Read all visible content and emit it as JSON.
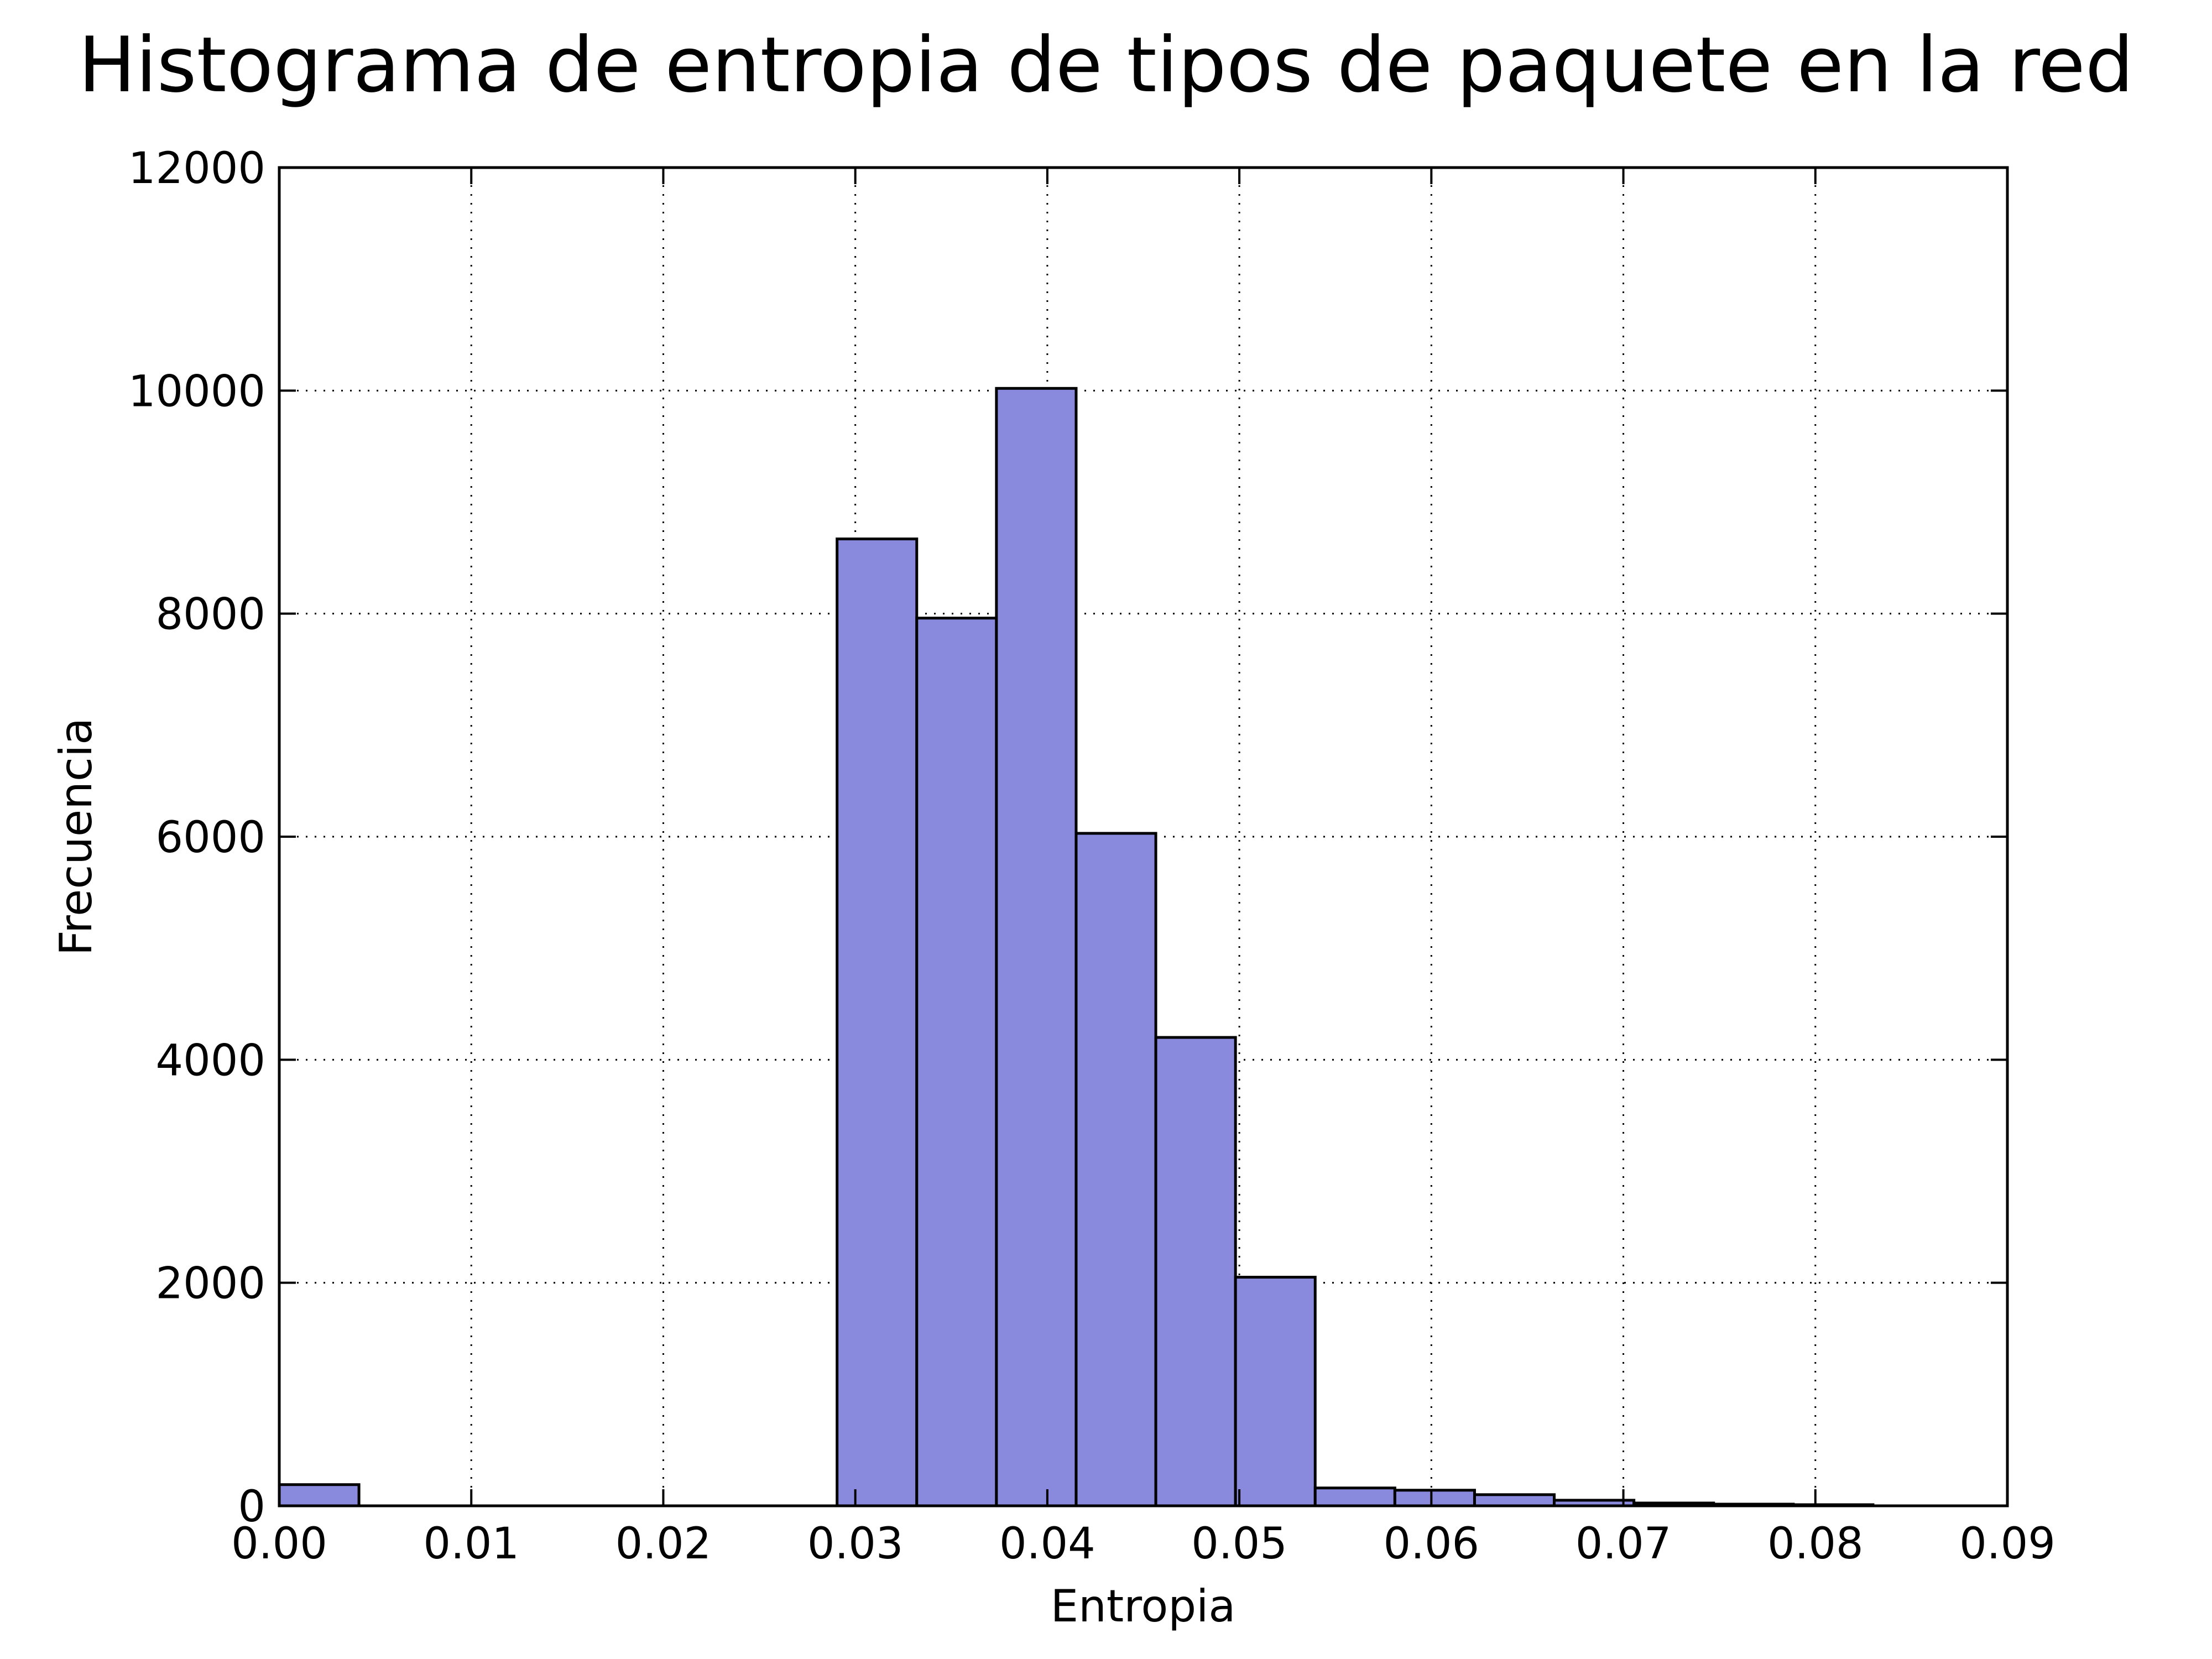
{
  "chart_data": {
    "type": "bar",
    "title": "Histograma de entropia de tipos de paquete en la red",
    "xlabel": "Entropia",
    "ylabel": "Frecuencia",
    "xlim": [
      0.0,
      0.09
    ],
    "ylim": [
      0,
      12000
    ],
    "grid": true,
    "x_tick_labels": [
      "0.00",
      "0.01",
      "0.02",
      "0.03",
      "0.04",
      "0.05",
      "0.06",
      "0.07",
      "0.08",
      "0.09"
    ],
    "y_tick_labels": [
      "0",
      "2000",
      "4000",
      "6000",
      "8000",
      "10000",
      "12000"
    ],
    "bin_edges": [
      0.0,
      0.00415,
      0.0083,
      0.01245,
      0.0166,
      0.02075,
      0.0249,
      0.02905,
      0.0332,
      0.03735,
      0.0415,
      0.04565,
      0.0498,
      0.05395,
      0.0581,
      0.06225,
      0.0664,
      0.07055,
      0.0747,
      0.07885,
      0.083
    ],
    "values": [
      190,
      0,
      0,
      0,
      0,
      0,
      0,
      8670,
      7960,
      10020,
      6030,
      4200,
      2050,
      160,
      140,
      100,
      50,
      25,
      15,
      10
    ],
    "colors": {
      "bar_fill": "#8989dd",
      "bar_edge": "#000000",
      "grid": "#000000"
    }
  }
}
